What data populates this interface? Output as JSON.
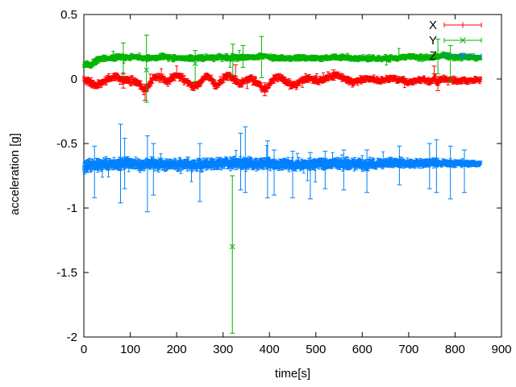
{
  "page": {
    "background": "#ffffff",
    "axis_color": "#000000",
    "text_color": "#000000"
  },
  "chart_data": {
    "type": "scatter",
    "style": "errorbars",
    "title": "",
    "xlabel": "time[s]",
    "ylabel": "acceleration [g]",
    "xlim": [
      0,
      900
    ],
    "ylim": [
      -2,
      0.5
    ],
    "xticks": [
      0,
      100,
      200,
      300,
      400,
      500,
      600,
      700,
      800,
      900
    ],
    "yticks": [
      0.5,
      0,
      -0.5,
      -1,
      -1.5,
      -2
    ],
    "ytick_labels": [
      "0.5",
      "0",
      "-0.5",
      "-1",
      "-1.5",
      "-2"
    ],
    "xtick_labels": [
      "0",
      "100",
      "200",
      "300",
      "400",
      "500",
      "600",
      "700",
      "800",
      "900"
    ],
    "grid": false,
    "legend": {
      "position": "top-right",
      "order": [
        "X",
        "Y",
        "Z"
      ]
    },
    "data_t_range": [
      0,
      855
    ],
    "sample_step": 1,
    "series": [
      {
        "name": "X",
        "color": "#ff0000",
        "marker": "plus",
        "mean_level": 0.0,
        "noise": 0.028,
        "err_base": 0.012,
        "err_var": 0.018,
        "spike_prob": 0.012,
        "width_profile": [
          [
            0,
            1.0
          ],
          [
            500,
            1.0
          ],
          [
            855,
            0.8
          ]
        ],
        "trend": [
          [
            0,
            -0.01
          ],
          [
            10,
            -0.015
          ],
          [
            18,
            -0.04
          ],
          [
            30,
            -0.045
          ],
          [
            40,
            -0.03
          ],
          [
            50,
            -0.005
          ],
          [
            60,
            0.01
          ],
          [
            72,
            0.015
          ],
          [
            82,
            -0.005
          ],
          [
            92,
            -0.01
          ],
          [
            102,
            -0.01
          ],
          [
            112,
            -0.02
          ],
          [
            122,
            -0.05
          ],
          [
            130,
            -0.09
          ],
          [
            138,
            -0.06
          ],
          [
            146,
            -0.01
          ],
          [
            155,
            0.01
          ],
          [
            165,
            0.015
          ],
          [
            172,
            0.0
          ],
          [
            180,
            -0.02
          ],
          [
            188,
            0.0
          ],
          [
            196,
            0.025
          ],
          [
            205,
            0.025
          ],
          [
            212,
            0.005
          ],
          [
            220,
            -0.02
          ],
          [
            228,
            -0.045
          ],
          [
            238,
            -0.06
          ],
          [
            248,
            -0.04
          ],
          [
            256,
            0.0
          ],
          [
            264,
            0.025
          ],
          [
            272,
            0.005
          ],
          [
            280,
            -0.035
          ],
          [
            288,
            -0.055
          ],
          [
            296,
            -0.015
          ],
          [
            304,
            0.02
          ],
          [
            312,
            0.025
          ],
          [
            320,
            0.005
          ],
          [
            328,
            -0.02
          ],
          [
            336,
            -0.045
          ],
          [
            344,
            -0.025
          ],
          [
            352,
            0.0
          ],
          [
            360,
            -0.005
          ],
          [
            368,
            -0.015
          ],
          [
            376,
            -0.035
          ],
          [
            385,
            -0.07
          ],
          [
            393,
            -0.075
          ],
          [
            401,
            -0.035
          ],
          [
            409,
            0.0
          ],
          [
            417,
            0.015
          ],
          [
            425,
            0.01
          ],
          [
            433,
            -0.005
          ],
          [
            441,
            -0.035
          ],
          [
            450,
            -0.055
          ],
          [
            458,
            -0.05
          ],
          [
            466,
            -0.02
          ],
          [
            474,
            0.0
          ],
          [
            482,
            0.005
          ],
          [
            492,
            -0.005
          ],
          [
            502,
            -0.01
          ],
          [
            512,
            -0.005
          ],
          [
            522,
            0.01
          ],
          [
            532,
            0.02
          ],
          [
            542,
            0.03
          ],
          [
            552,
            0.02
          ],
          [
            562,
            0.005
          ],
          [
            572,
            -0.01
          ],
          [
            582,
            -0.025
          ],
          [
            592,
            -0.015
          ],
          [
            602,
            -0.005
          ],
          [
            612,
            0.005
          ],
          [
            622,
            0.0
          ],
          [
            632,
            -0.01
          ],
          [
            642,
            -0.015
          ],
          [
            652,
            -0.005
          ],
          [
            662,
            0.005
          ],
          [
            672,
            0.0
          ],
          [
            682,
            -0.01
          ],
          [
            692,
            -0.02
          ],
          [
            702,
            -0.03
          ],
          [
            712,
            -0.02
          ],
          [
            722,
            -0.01
          ],
          [
            732,
            -0.005
          ],
          [
            742,
            -0.015
          ],
          [
            750,
            -0.02
          ],
          [
            756,
            0.015
          ],
          [
            762,
            -0.035
          ],
          [
            768,
            -0.005
          ],
          [
            776,
            0.005
          ],
          [
            784,
            0.0
          ],
          [
            792,
            -0.01
          ],
          [
            800,
            -0.015
          ],
          [
            810,
            -0.01
          ],
          [
            820,
            -0.005
          ],
          [
            830,
            -0.01
          ],
          [
            840,
            -0.01
          ],
          [
            855,
            -0.008
          ]
        ],
        "outliers": [
          [
            85,
            -0.02,
            -0.07,
            0.04
          ],
          [
            132,
            -0.1,
            -0.165,
            -0.04
          ],
          [
            327,
            0.02,
            -0.02,
            0.11
          ],
          [
            390,
            -0.08,
            -0.13,
            -0.03
          ],
          [
            538,
            0.03,
            -0.01,
            0.07
          ],
          [
            755,
            0.04,
            -0.02,
            0.1
          ],
          [
            763,
            -0.05,
            -0.09,
            0.02
          ]
        ]
      },
      {
        "name": "Y",
        "color": "#00b400",
        "marker": "cross",
        "mean_level": 0.16,
        "noise": 0.018,
        "err_base": 0.01,
        "err_var": 0.015,
        "spike_prob": 0.012,
        "width_profile": [
          [
            0,
            1.0
          ],
          [
            855,
            1.0
          ]
        ],
        "trend": [
          [
            0,
            0.105
          ],
          [
            8,
            0.12
          ],
          [
            15,
            0.1
          ],
          [
            22,
            0.13
          ],
          [
            30,
            0.15
          ],
          [
            45,
            0.16
          ],
          [
            60,
            0.165
          ],
          [
            80,
            0.17
          ],
          [
            100,
            0.17
          ],
          [
            120,
            0.165
          ],
          [
            135,
            0.16
          ],
          [
            150,
            0.165
          ],
          [
            170,
            0.17
          ],
          [
            190,
            0.165
          ],
          [
            210,
            0.16
          ],
          [
            230,
            0.165
          ],
          [
            250,
            0.16
          ],
          [
            270,
            0.165
          ],
          [
            290,
            0.17
          ],
          [
            310,
            0.165
          ],
          [
            330,
            0.165
          ],
          [
            350,
            0.165
          ],
          [
            370,
            0.17
          ],
          [
            385,
            0.18
          ],
          [
            395,
            0.175
          ],
          [
            410,
            0.165
          ],
          [
            430,
            0.16
          ],
          [
            450,
            0.16
          ],
          [
            470,
            0.165
          ],
          [
            490,
            0.165
          ],
          [
            510,
            0.16
          ],
          [
            530,
            0.165
          ],
          [
            550,
            0.17
          ],
          [
            570,
            0.165
          ],
          [
            590,
            0.16
          ],
          [
            610,
            0.16
          ],
          [
            630,
            0.16
          ],
          [
            650,
            0.16
          ],
          [
            670,
            0.165
          ],
          [
            690,
            0.17
          ],
          [
            705,
            0.175
          ],
          [
            720,
            0.17
          ],
          [
            740,
            0.165
          ],
          [
            760,
            0.175
          ],
          [
            775,
            0.185
          ],
          [
            790,
            0.175
          ],
          [
            805,
            0.165
          ],
          [
            815,
            0.17
          ],
          [
            825,
            0.175
          ],
          [
            840,
            0.165
          ],
          [
            855,
            0.16
          ]
        ],
        "outliers": [
          [
            85,
            0.16,
            0.02,
            0.28
          ],
          [
            135,
            0.07,
            -0.18,
            0.34
          ],
          [
            240,
            0.12,
            -0.02,
            0.22
          ],
          [
            321,
            0.15,
            0.03,
            0.27
          ],
          [
            343,
            0.17,
            0.09,
            0.26
          ],
          [
            383,
            0.18,
            0.01,
            0.33
          ],
          [
            763,
            0.17,
            0.04,
            0.31
          ],
          [
            790,
            0.16,
            -0.02,
            0.26
          ],
          [
            320,
            -1.3,
            -1.97,
            -0.75
          ]
        ]
      },
      {
        "name": "Z",
        "color": "#0080ff",
        "marker": "asterisk",
        "mean_level": -0.66,
        "noise": 0.035,
        "err_base": 0.02,
        "err_var": 0.03,
        "spike_prob": 0.02,
        "width_profile": [
          [
            0,
            1.05
          ],
          [
            300,
            1.0
          ],
          [
            600,
            0.95
          ],
          [
            700,
            0.8
          ],
          [
            790,
            0.65
          ],
          [
            855,
            0.5
          ]
        ],
        "trend": [
          [
            0,
            -0.68
          ],
          [
            10,
            -0.67
          ],
          [
            30,
            -0.665
          ],
          [
            60,
            -0.66
          ],
          [
            90,
            -0.655
          ],
          [
            120,
            -0.665
          ],
          [
            150,
            -0.66
          ],
          [
            180,
            -0.665
          ],
          [
            210,
            -0.66
          ],
          [
            240,
            -0.665
          ],
          [
            270,
            -0.66
          ],
          [
            300,
            -0.652
          ],
          [
            330,
            -0.65
          ],
          [
            360,
            -0.658
          ],
          [
            390,
            -0.655
          ],
          [
            420,
            -0.663
          ],
          [
            450,
            -0.665
          ],
          [
            480,
            -0.662
          ],
          [
            510,
            -0.656
          ],
          [
            540,
            -0.654
          ],
          [
            570,
            -0.658
          ],
          [
            600,
            -0.663
          ],
          [
            630,
            -0.658
          ],
          [
            660,
            -0.652
          ],
          [
            690,
            -0.652
          ],
          [
            720,
            -0.654
          ],
          [
            750,
            -0.65
          ],
          [
            780,
            -0.654
          ],
          [
            810,
            -0.657
          ],
          [
            840,
            -0.655
          ],
          [
            855,
            -0.655
          ]
        ],
        "outliers": [
          [
            23,
            -0.66,
            -0.92,
            -0.52
          ],
          [
            79,
            -0.62,
            -0.96,
            -0.35
          ],
          [
            88,
            -0.63,
            -0.85,
            -0.46
          ],
          [
            137,
            -0.66,
            -1.03,
            -0.44
          ],
          [
            150,
            -0.65,
            -0.9,
            -0.5
          ],
          [
            250,
            -0.66,
            -0.95,
            -0.5
          ],
          [
            338,
            -0.64,
            -0.86,
            -0.42
          ],
          [
            348,
            -0.62,
            -0.88,
            -0.37
          ],
          [
            396,
            -0.63,
            -0.92,
            -0.48
          ],
          [
            410,
            -0.67,
            -0.9,
            -0.55
          ],
          [
            450,
            -0.68,
            -0.92,
            -0.56
          ],
          [
            488,
            -0.68,
            -0.93,
            -0.57
          ],
          [
            520,
            -0.63,
            -0.85,
            -0.56
          ],
          [
            560,
            -0.64,
            -0.86,
            -0.55
          ],
          [
            610,
            -0.66,
            -0.88,
            -0.55
          ],
          [
            680,
            -0.64,
            -0.82,
            -0.52
          ],
          [
            745,
            -0.64,
            -0.85,
            -0.5
          ],
          [
            760,
            -0.63,
            -0.88,
            -0.47
          ],
          [
            790,
            -0.65,
            -0.93,
            -0.52
          ],
          [
            820,
            -0.65,
            -0.88,
            -0.55
          ]
        ]
      }
    ]
  }
}
